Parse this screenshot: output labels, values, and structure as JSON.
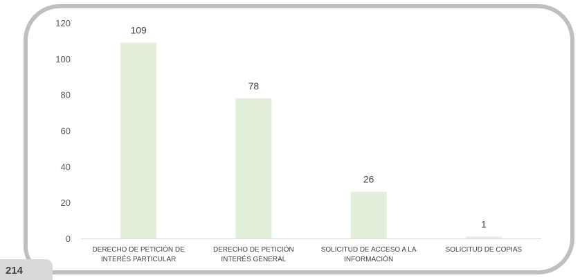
{
  "page_number": "214",
  "colors": {
    "bar": "#e2efda",
    "frame": "#bfbfbf",
    "axis": "#d9d9d9"
  },
  "chart_data": {
    "type": "bar",
    "title": "",
    "xlabel": "",
    "ylabel": "",
    "ylim": [
      0,
      120
    ],
    "yticks": [
      0,
      20,
      40,
      60,
      80,
      100,
      120
    ],
    "grid": false,
    "categories": [
      [
        "DERECHO DE PETICIÓN DE",
        "INTERÉS PARTICULAR"
      ],
      [
        "DERECHO DE PETICIÓN",
        "INTERÉS GENERAL"
      ],
      [
        "SOLICITUD DE ACCESO A LA",
        "INFORMACIÓN"
      ],
      [
        "SOLICITUD DE COPIAS"
      ]
    ],
    "values": [
      109,
      78,
      26,
      1
    ]
  }
}
